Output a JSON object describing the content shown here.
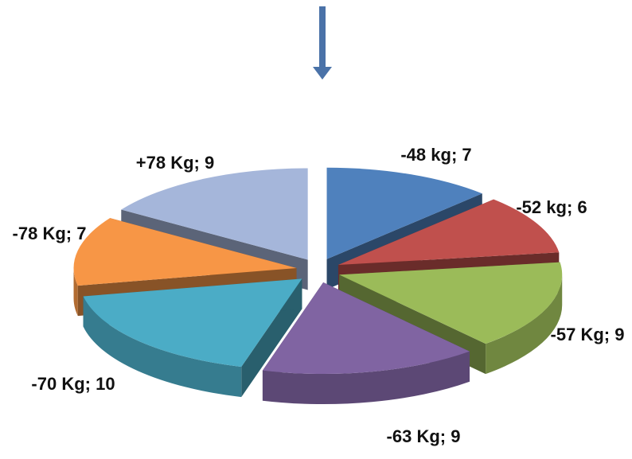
{
  "chart_data": {
    "type": "pie",
    "style": "3d-exploded",
    "title": "",
    "legend": "none",
    "series": [
      {
        "slices": [
          {
            "label": "-48 kg; 7",
            "value": 7,
            "color": "#4F81BD"
          },
          {
            "label": "-52 kg; 6",
            "value": 6,
            "color": "#C0504D"
          },
          {
            "label": "-57 Kg; 9",
            "value": 9,
            "color": "#9BBB59"
          },
          {
            "label": "-63 Kg; 9",
            "value": 9,
            "color": "#8064A2"
          },
          {
            "label": "-70 Kg; 10",
            "value": 10,
            "color": "#4BACC6"
          },
          {
            "label": "-78 Kg; 7",
            "value": 7,
            "color": "#F79646"
          },
          {
            "label": "+78 Kg; 9",
            "value": 9,
            "color": "#A5B6DA"
          }
        ]
      }
    ]
  },
  "decorations": {
    "arrow_color": "#4A72A8",
    "arrow_direction": "down"
  }
}
